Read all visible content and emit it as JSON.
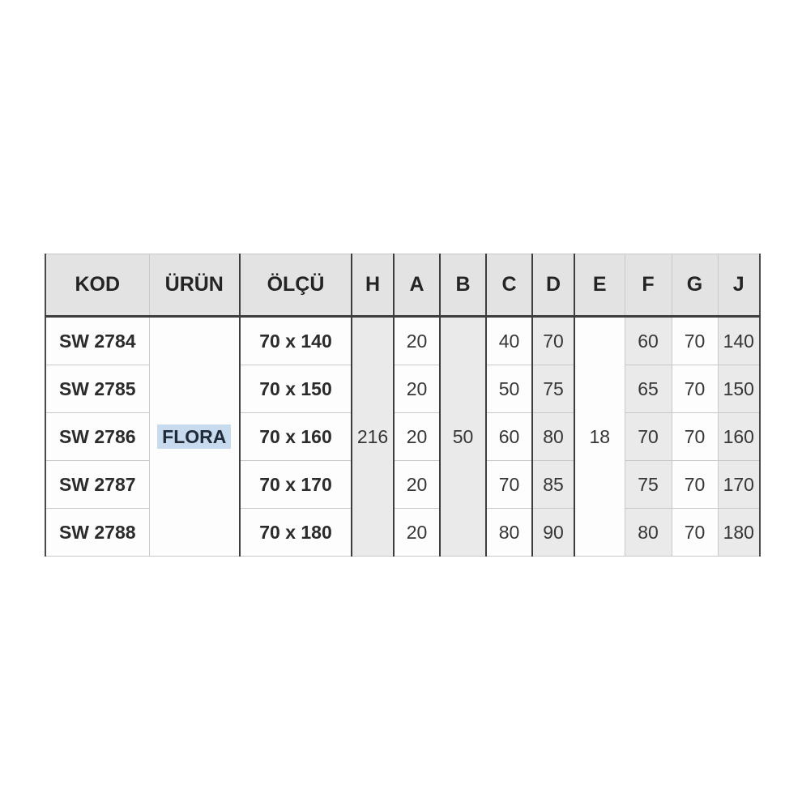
{
  "table": {
    "headers": [
      "KOD",
      "ÜRÜN",
      "ÖLÇÜ",
      "H",
      "A",
      "B",
      "C",
      "D",
      "E",
      "F",
      "G",
      "J"
    ],
    "merged_cells": {
      "urun": "FLORA",
      "h": "216",
      "b": "50",
      "e": "18"
    },
    "rows": [
      {
        "kod": "SW 2784",
        "olcu": "70 x 140",
        "a": "20",
        "c": "40",
        "d": "70",
        "f": "60",
        "g": "70",
        "j": "140"
      },
      {
        "kod": "SW 2785",
        "olcu": "70 x 150",
        "a": "20",
        "c": "50",
        "d": "75",
        "f": "65",
        "g": "70",
        "j": "150"
      },
      {
        "kod": "SW 2786",
        "olcu": "70 x 160",
        "a": "20",
        "c": "60",
        "d": "80",
        "f": "70",
        "g": "70",
        "j": "160"
      },
      {
        "kod": "SW 2787",
        "olcu": "70 x 170",
        "a": "20",
        "c": "70",
        "d": "85",
        "f": "75",
        "g": "70",
        "j": "170"
      },
      {
        "kod": "SW 2788",
        "olcu": "70 x 180",
        "a": "20",
        "c": "80",
        "d": "90",
        "f": "80",
        "g": "70",
        "j": "180"
      }
    ],
    "colors": {
      "header_bg": "#e3e3e3",
      "shaded_bg": "#eaeaea",
      "white_bg": "#fdfdfd",
      "flora_highlight": "#c7daee",
      "thick_border": "#3d3d3d",
      "thin_border": "#c9c9c9",
      "outer_border": "#4a4a4a",
      "header_text": "#242424",
      "cell_text": "#363636"
    }
  },
  "chart_data": {
    "type": "table",
    "title": "",
    "columns": [
      "KOD",
      "ÜRÜN",
      "ÖLÇÜ",
      "H",
      "A",
      "B",
      "C",
      "D",
      "E",
      "F",
      "G",
      "J"
    ],
    "rows": [
      [
        "SW 2784",
        "",
        "70 x 140",
        "",
        "20",
        "",
        "40",
        "70",
        "",
        "60",
        "70",
        "140"
      ],
      [
        "SW 2785",
        "",
        "70 x 150",
        "",
        "20",
        "",
        "50",
        "75",
        "",
        "65",
        "70",
        "150"
      ],
      [
        "SW 2786",
        "FLORA",
        "70 x 160",
        "216",
        "20",
        "50",
        "60",
        "80",
        "18",
        "70",
        "70",
        "160"
      ],
      [
        "SW 2787",
        "",
        "70 x 170",
        "",
        "20",
        "",
        "70",
        "85",
        "",
        "75",
        "70",
        "170"
      ],
      [
        "SW 2788",
        "",
        "70 x 180",
        "",
        "20",
        "",
        "80",
        "90",
        "",
        "80",
        "70",
        "180"
      ]
    ],
    "merged_column_values": {
      "ÜRÜN": "FLORA",
      "H": "216",
      "B": "50",
      "E": "18"
    },
    "shaded_columns": [
      "H",
      "B",
      "D",
      "F",
      "J"
    ]
  }
}
